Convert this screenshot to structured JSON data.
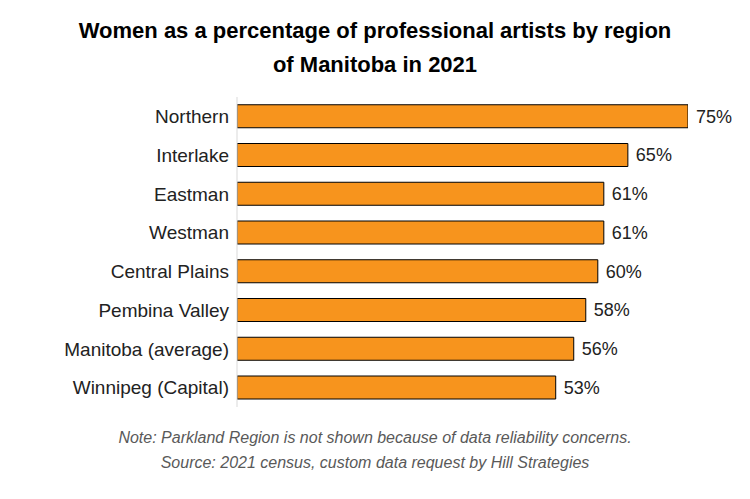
{
  "chart_data": {
    "type": "bar",
    "orientation": "horizontal",
    "title": "Women as a percentage of professional artists by region of Manitoba in 2021",
    "categories": [
      "Northern",
      "Interlake",
      "Eastman",
      "Westman",
      "Central Plains",
      "Pembina Valley",
      "Manitoba (average)",
      "Winnipeg (Capital)"
    ],
    "values": [
      75,
      65,
      61,
      61,
      60,
      58,
      56,
      53
    ],
    "value_labels": [
      "75%",
      "65%",
      "61%",
      "61%",
      "60%",
      "58%",
      "56%",
      "53%"
    ],
    "data_labels": true,
    "tick_labels": "y",
    "color": "#f7941d",
    "xlim": [
      0,
      75
    ],
    "grid": false,
    "annotations": [
      "Note: Parkland Region is not shown because of data reliability concerns.",
      "Source: 2021 census, custom data request by Hill Strategies"
    ]
  }
}
